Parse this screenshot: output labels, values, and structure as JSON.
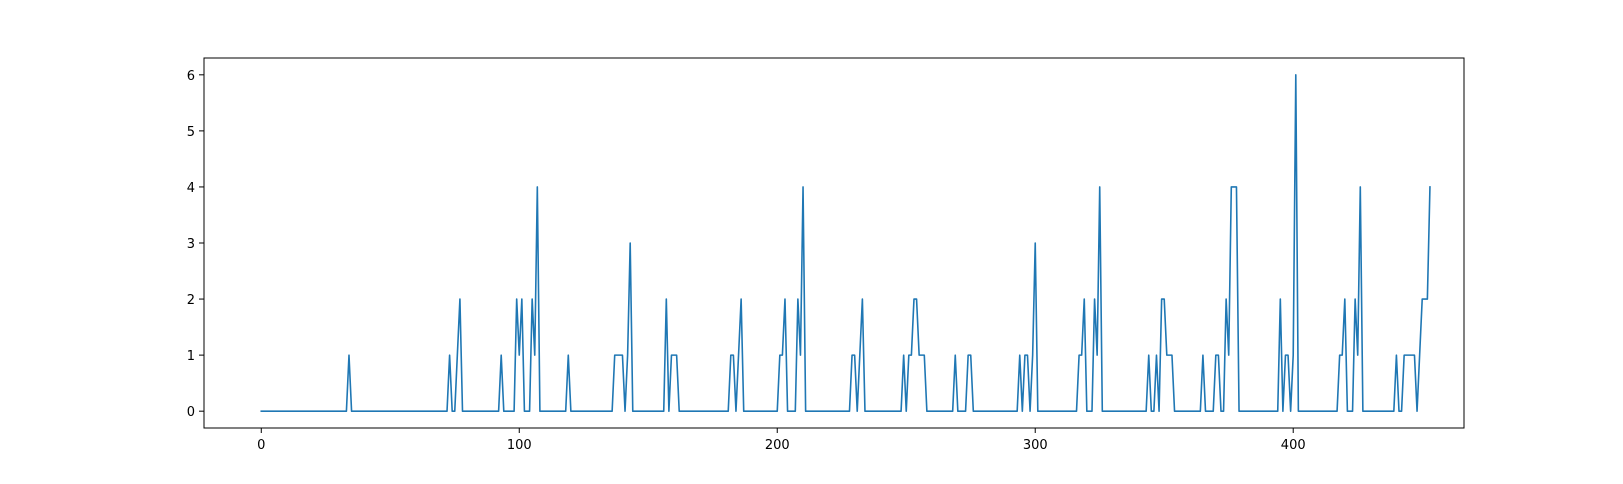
{
  "chart_data": {
    "type": "line",
    "title": "",
    "xlabel": "",
    "ylabel": "",
    "xlim": [
      -22.2,
      466.2
    ],
    "ylim": [
      -0.3,
      6.3
    ],
    "x_ticks": [
      0,
      100,
      200,
      300,
      400
    ],
    "x_tick_labels": [
      "0",
      "100",
      "200",
      "300",
      "400"
    ],
    "y_ticks": [
      0,
      1,
      2,
      3,
      4,
      5,
      6
    ],
    "y_tick_labels": [
      "0",
      "1",
      "2",
      "3",
      "4",
      "5",
      "6"
    ],
    "grid": false,
    "series": [
      {
        "color": "#1f77b4",
        "x_start": 0,
        "x_step": 1,
        "values": [
          0,
          0,
          0,
          0,
          0,
          0,
          0,
          0,
          0,
          0,
          0,
          0,
          0,
          0,
          0,
          0,
          0,
          0,
          0,
          0,
          0,
          0,
          0,
          0,
          0,
          0,
          0,
          0,
          0,
          0,
          0,
          0,
          0,
          0,
          1,
          0,
          0,
          0,
          0,
          0,
          0,
          0,
          0,
          0,
          0,
          0,
          0,
          0,
          0,
          0,
          0,
          0,
          0,
          0,
          0,
          0,
          0,
          0,
          0,
          0,
          0,
          0,
          0,
          0,
          0,
          0,
          0,
          0,
          0,
          0,
          0,
          0,
          0,
          1,
          0,
          0,
          1,
          2,
          0,
          0,
          0,
          0,
          0,
          0,
          0,
          0,
          0,
          0,
          0,
          0,
          0,
          0,
          0,
          1,
          0,
          0,
          0,
          0,
          0,
          2,
          1,
          2,
          0,
          0,
          0,
          2,
          1,
          4,
          0,
          0,
          0,
          0,
          0,
          0,
          0,
          0,
          0,
          0,
          0,
          1,
          0,
          0,
          0,
          0,
          0,
          0,
          0,
          0,
          0,
          0,
          0,
          0,
          0,
          0,
          0,
          0,
          0,
          1,
          1,
          1,
          1,
          0,
          1,
          3,
          0,
          0,
          0,
          0,
          0,
          0,
          0,
          0,
          0,
          0,
          0,
          0,
          0,
          2,
          0,
          1,
          1,
          1,
          0,
          0,
          0,
          0,
          0,
          0,
          0,
          0,
          0,
          0,
          0,
          0,
          0,
          0,
          0,
          0,
          0,
          0,
          0,
          0,
          1,
          1,
          0,
          1,
          2,
          0,
          0,
          0,
          0,
          0,
          0,
          0,
          0,
          0,
          0,
          0,
          0,
          0,
          0,
          1,
          1,
          2,
          0,
          0,
          0,
          0,
          2,
          1,
          4,
          0,
          0,
          0,
          0,
          0,
          0,
          0,
          0,
          0,
          0,
          0,
          0,
          0,
          0,
          0,
          0,
          0,
          0,
          1,
          1,
          0,
          1,
          2,
          0,
          0,
          0,
          0,
          0,
          0,
          0,
          0,
          0,
          0,
          0,
          0,
          0,
          0,
          0,
          1,
          0,
          1,
          1,
          2,
          2,
          1,
          1,
          1,
          0,
          0,
          0,
          0,
          0,
          0,
          0,
          0,
          0,
          0,
          0,
          1,
          0,
          0,
          0,
          0,
          1,
          1,
          0,
          0,
          0,
          0,
          0,
          0,
          0,
          0,
          0,
          0,
          0,
          0,
          0,
          0,
          0,
          0,
          0,
          0,
          1,
          0,
          1,
          1,
          0,
          1,
          3,
          0,
          0,
          0,
          0,
          0,
          0,
          0,
          0,
          0,
          0,
          0,
          0,
          0,
          0,
          0,
          0,
          1,
          1,
          2,
          0,
          0,
          0,
          2,
          1,
          4,
          0,
          0,
          0,
          0,
          0,
          0,
          0,
          0,
          0,
          0,
          0,
          0,
          0,
          0,
          0,
          0,
          0,
          0,
          1,
          0,
          0,
          1,
          0,
          2,
          2,
          1,
          1,
          1,
          0,
          0,
          0,
          0,
          0,
          0,
          0,
          0,
          0,
          0,
          0,
          1,
          0,
          0,
          0,
          0,
          1,
          1,
          0,
          0,
          2,
          1,
          4,
          4,
          4,
          0,
          0,
          0,
          0,
          0,
          0,
          0,
          0,
          0,
          0,
          0,
          0,
          0,
          0,
          0,
          0,
          2,
          0,
          1,
          1,
          0,
          1,
          6,
          0,
          0,
          0,
          0,
          0,
          0,
          0,
          0,
          0,
          0,
          0,
          0,
          0,
          0,
          0,
          0,
          1,
          1,
          2,
          0,
          0,
          0,
          2,
          1,
          4,
          0,
          0,
          0,
          0,
          0,
          0,
          0,
          0,
          0,
          0,
          0,
          0,
          0,
          1,
          0,
          0,
          1,
          1,
          1,
          1,
          1,
          0,
          1,
          2,
          2,
          2,
          4
        ]
      }
    ]
  }
}
